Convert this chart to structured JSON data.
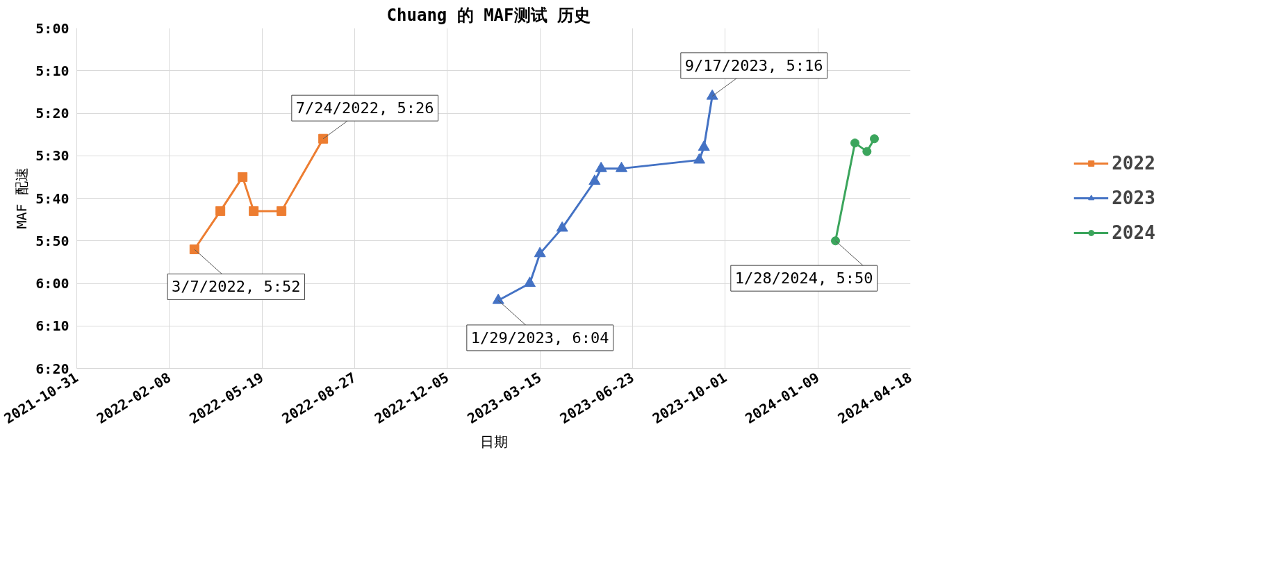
{
  "chart_data": {
    "type": "line",
    "title": "Chuang  的 MAF测试 历史",
    "xlabel": "日期",
    "ylabel": "MAF 配速",
    "series": [
      {
        "name": "2022",
        "color": "#ed7d31",
        "marker": "square",
        "x": [
          "2022-03-07",
          "2022-04-04",
          "2022-04-28",
          "2022-05-10",
          "2022-06-09",
          "2022-07-24"
        ],
        "values": [
          352,
          343,
          335,
          343,
          343,
          326
        ]
      },
      {
        "name": "2023",
        "color": "#4472c4",
        "marker": "triangle",
        "x": [
          "2023-01-29",
          "2023-03-04",
          "2023-03-15",
          "2023-04-08",
          "2023-05-13",
          "2023-05-20",
          "2023-06-11",
          "2023-09-03",
          "2023-09-08",
          "2023-09-17"
        ],
        "values": [
          364,
          360,
          353,
          347,
          336,
          333,
          333,
          331,
          328,
          316
        ]
      },
      {
        "name": "2024",
        "color": "#3ba55c",
        "marker": "circle",
        "x": [
          "2024-01-28",
          "2024-02-18",
          "2024-03-02",
          "2024-03-10"
        ],
        "values": [
          350,
          327,
          329,
          326
        ]
      }
    ],
    "xlim": [
      "2021-10-31",
      "2024-04-18"
    ],
    "xticks": [
      "2021-10-31",
      "2022-02-08",
      "2022-05-19",
      "2022-08-27",
      "2022-12-05",
      "2023-03-15",
      "2023-06-23",
      "2023-10-01",
      "2024-01-09",
      "2024-04-18"
    ],
    "ylim": [
      380,
      300
    ],
    "yticks": [
      {
        "value": 300,
        "label": "5:00"
      },
      {
        "value": 310,
        "label": "5:10"
      },
      {
        "value": 320,
        "label": "5:20"
      },
      {
        "value": 330,
        "label": "5:30"
      },
      {
        "value": 340,
        "label": "5:40"
      },
      {
        "value": 350,
        "label": "5:50"
      },
      {
        "value": 360,
        "label": "6:00"
      },
      {
        "value": 370,
        "label": "6:10"
      },
      {
        "value": 380,
        "label": "6:20"
      }
    ],
    "annotations": [
      {
        "text": "3/7/2022, 5:52",
        "x": "2022-03-07",
        "y": 352
      },
      {
        "text": "7/24/2022, 5:26",
        "x": "2022-07-24",
        "y": 326
      },
      {
        "text": "1/29/2023, 6:04",
        "x": "2023-01-29",
        "y": 364
      },
      {
        "text": "9/17/2023, 5:16",
        "x": "2023-09-17",
        "y": 316
      },
      {
        "text": "1/28/2024, 5:50",
        "x": "2024-01-28",
        "y": 350
      }
    ],
    "grid": true,
    "legend": "right",
    "line_style": "solid"
  }
}
